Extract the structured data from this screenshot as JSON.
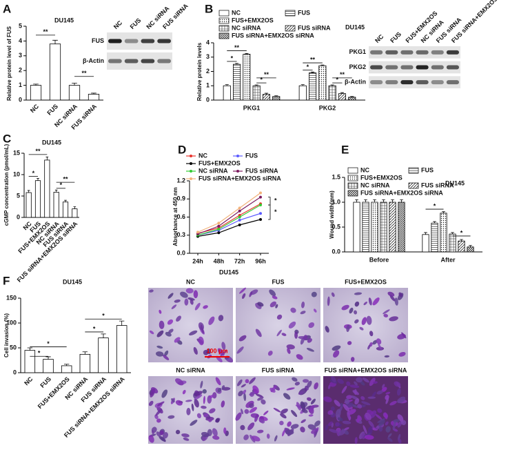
{
  "chart_data": [
    {
      "panel": "A",
      "type": "bar",
      "title": "DU145",
      "y_label": "Relative protein level of FUS",
      "categories": [
        "NC",
        "FUS",
        "NC siRNA",
        "FUS siRNA"
      ],
      "values": [
        1.0,
        3.8,
        1.0,
        0.4
      ],
      "errors": [
        0.08,
        0.25,
        0.15,
        0.07
      ],
      "color": "#ffffff",
      "ylim": [
        0,
        5
      ],
      "yticks": [
        0,
        1,
        2,
        3,
        4,
        5
      ],
      "annotations": [
        "**",
        "**"
      ],
      "blot": {
        "columns": [
          "NC",
          "FUS",
          "NC siRNA",
          "FUS siRNA"
        ],
        "rows": [
          "FUS",
          "β-Actin"
        ]
      }
    },
    {
      "panel": "B",
      "type": "bar",
      "title": "DU145",
      "y_label": "Relative protein levels",
      "categories": [
        "PKG1",
        "PKG2"
      ],
      "series": [
        {
          "name": "NC",
          "color": "#ffffff",
          "pattern": "none",
          "values": [
            1.0,
            1.0
          ],
          "errors": [
            0.08,
            0.08
          ]
        },
        {
          "name": "FUS",
          "color": "#ffffff",
          "pattern": "hlines",
          "values": [
            2.5,
            1.9
          ],
          "errors": [
            0.06,
            0.06
          ]
        },
        {
          "name": "FUS+EMX2OS",
          "color": "#ffffff",
          "pattern": "dots",
          "values": [
            3.2,
            2.4
          ],
          "errors": [
            0.06,
            0.05
          ]
        },
        {
          "name": "NC siRNA",
          "color": "#ffffff",
          "pattern": "cross",
          "values": [
            1.0,
            1.0
          ],
          "errors": [
            0.06,
            0.06
          ]
        },
        {
          "name": "FUS siRNA",
          "color": "#ffffff",
          "pattern": "diag",
          "values": [
            0.4,
            0.45
          ],
          "errors": [
            0.08,
            0.07
          ]
        },
        {
          "name": "FUS siRNA+EMX2OS siRNA",
          "color": "#ffffff",
          "pattern": "dense",
          "values": [
            0.25,
            0.2
          ],
          "errors": [
            0.05,
            0.05
          ]
        }
      ],
      "ylim": [
        0,
        4
      ],
      "yticks": [
        0,
        1,
        2,
        3,
        4
      ],
      "annotations": [
        "*",
        "**",
        "*",
        "**",
        "*",
        "**",
        "*",
        "**"
      ],
      "blot": {
        "columns": [
          "NC",
          "FUS",
          "FUS+EMX2OS",
          "NC siRNA",
          "FUS siRNA",
          "FUS siRNA+EMX2OS siRNA"
        ],
        "rows": [
          "PKG1",
          "PKG2",
          "β-Actin"
        ]
      }
    },
    {
      "panel": "C",
      "type": "bar",
      "title": "DU145",
      "y_label": "cGMP concentration (pmol/mL)",
      "categories": [
        "NC",
        "FUS",
        "FUS+EMX2OS",
        "NC siRNA",
        "FUS siRNA",
        "FUS siRNA+EMX2OS siRNA"
      ],
      "values": [
        5.8,
        8.6,
        13.4,
        5.9,
        3.6,
        2.0
      ],
      "errors": [
        0.5,
        0.5,
        0.7,
        0.5,
        0.4,
        0.5
      ],
      "color": "#ffffff",
      "ylim": [
        0,
        15
      ],
      "yticks": [
        0,
        5,
        10,
        15
      ],
      "annotations": [
        "*",
        "**",
        "*",
        "**"
      ]
    },
    {
      "panel": "D",
      "type": "line",
      "x_label": "DU145",
      "y_label": "Absorbance at 450 nm",
      "categories": [
        "24h",
        "48h",
        "72h",
        "96h"
      ],
      "series": [
        {
          "name": "NC",
          "color": "#e8322c",
          "values": [
            0.33,
            0.42,
            0.63,
            0.82
          ]
        },
        {
          "name": "FUS",
          "color": "#5b5bff",
          "values": [
            0.3,
            0.38,
            0.55,
            0.66
          ]
        },
        {
          "name": "FUS+EMX2OS",
          "color": "#000000",
          "values": [
            0.28,
            0.34,
            0.47,
            0.56
          ]
        },
        {
          "name": "NC siRNA",
          "color": "#33cc33",
          "values": [
            0.3,
            0.4,
            0.6,
            0.8
          ]
        },
        {
          "name": "FUS siRNA",
          "color": "#7b1a5e",
          "values": [
            0.32,
            0.45,
            0.7,
            0.93
          ]
        },
        {
          "name": "FUS siRNA+EMX2OS siRNA",
          "color": "#f2b27a",
          "values": [
            0.35,
            0.5,
            0.75,
            1.0
          ]
        }
      ],
      "ylim": [
        0,
        1.2
      ],
      "yticks": [
        {
          "value": 0,
          "label": "0.0"
        },
        0.3,
        0.6,
        0.9,
        1.2
      ],
      "annotations": [
        "*",
        "*"
      ]
    },
    {
      "panel": "E",
      "type": "bar",
      "title": "DU145",
      "y_label": "Wound width(mm)",
      "categories": [
        "Before",
        "After"
      ],
      "series": [
        {
          "name": "NC",
          "color": "#ffffff",
          "pattern": "none",
          "values": [
            1.0,
            0.35
          ],
          "errors": [
            0.05,
            0.04
          ]
        },
        {
          "name": "FUS",
          "color": "#ffffff",
          "pattern": "hlines",
          "values": [
            1.0,
            0.58
          ],
          "errors": [
            0.05,
            0.03
          ]
        },
        {
          "name": "FUS+EMX2OS",
          "color": "#ffffff",
          "pattern": "dots",
          "values": [
            1.0,
            0.78
          ],
          "errors": [
            0.05,
            0.03
          ]
        },
        {
          "name": "NC siRNA",
          "color": "#ffffff",
          "pattern": "cross",
          "values": [
            1.0,
            0.36
          ],
          "errors": [
            0.05,
            0.03
          ]
        },
        {
          "name": "FUS siRNA",
          "color": "#ffffff",
          "pattern": "diag",
          "values": [
            1.0,
            0.22
          ],
          "errors": [
            0.05,
            0.03
          ]
        },
        {
          "name": "FUS siRNA+EMX2OS siRNA",
          "color": "#ffffff",
          "pattern": "dense",
          "values": [
            1.0,
            0.1
          ],
          "errors": [
            0.05,
            0.03
          ]
        }
      ],
      "ylim": [
        0,
        1.5
      ],
      "yticks": [
        {
          "value": 0,
          "label": "0.0"
        },
        0.5,
        {
          "value": 1,
          "label": "1.0"
        },
        1.5
      ],
      "annotations": [
        "*",
        "*"
      ]
    },
    {
      "panel": "F",
      "type": "bar",
      "title": "DU145",
      "y_label": "Cell invasion (%)",
      "categories": [
        "NC",
        "FUS",
        "FUS+EMX2OS",
        "NC siRNA",
        "FUS siRNA",
        "FUS siRNA+EMX2OS siRNA"
      ],
      "values": [
        45,
        27,
        14,
        37,
        70,
        95
      ],
      "errors": [
        5,
        5,
        3,
        5,
        8,
        9
      ],
      "color": "#ffffff",
      "ylim": [
        0,
        150
      ],
      "yticks": [
        0,
        50,
        100,
        150
      ],
      "annotations": [
        "*",
        "*",
        "*",
        "*"
      ],
      "images": {
        "labels": [
          "NC",
          "FUS",
          "FUS+EMX2OS",
          "NC siRNA",
          "FUS siRNA",
          "FUS siRNA+EMX2OS siRNA"
        ],
        "scale_bar": "100 μm"
      }
    }
  ]
}
